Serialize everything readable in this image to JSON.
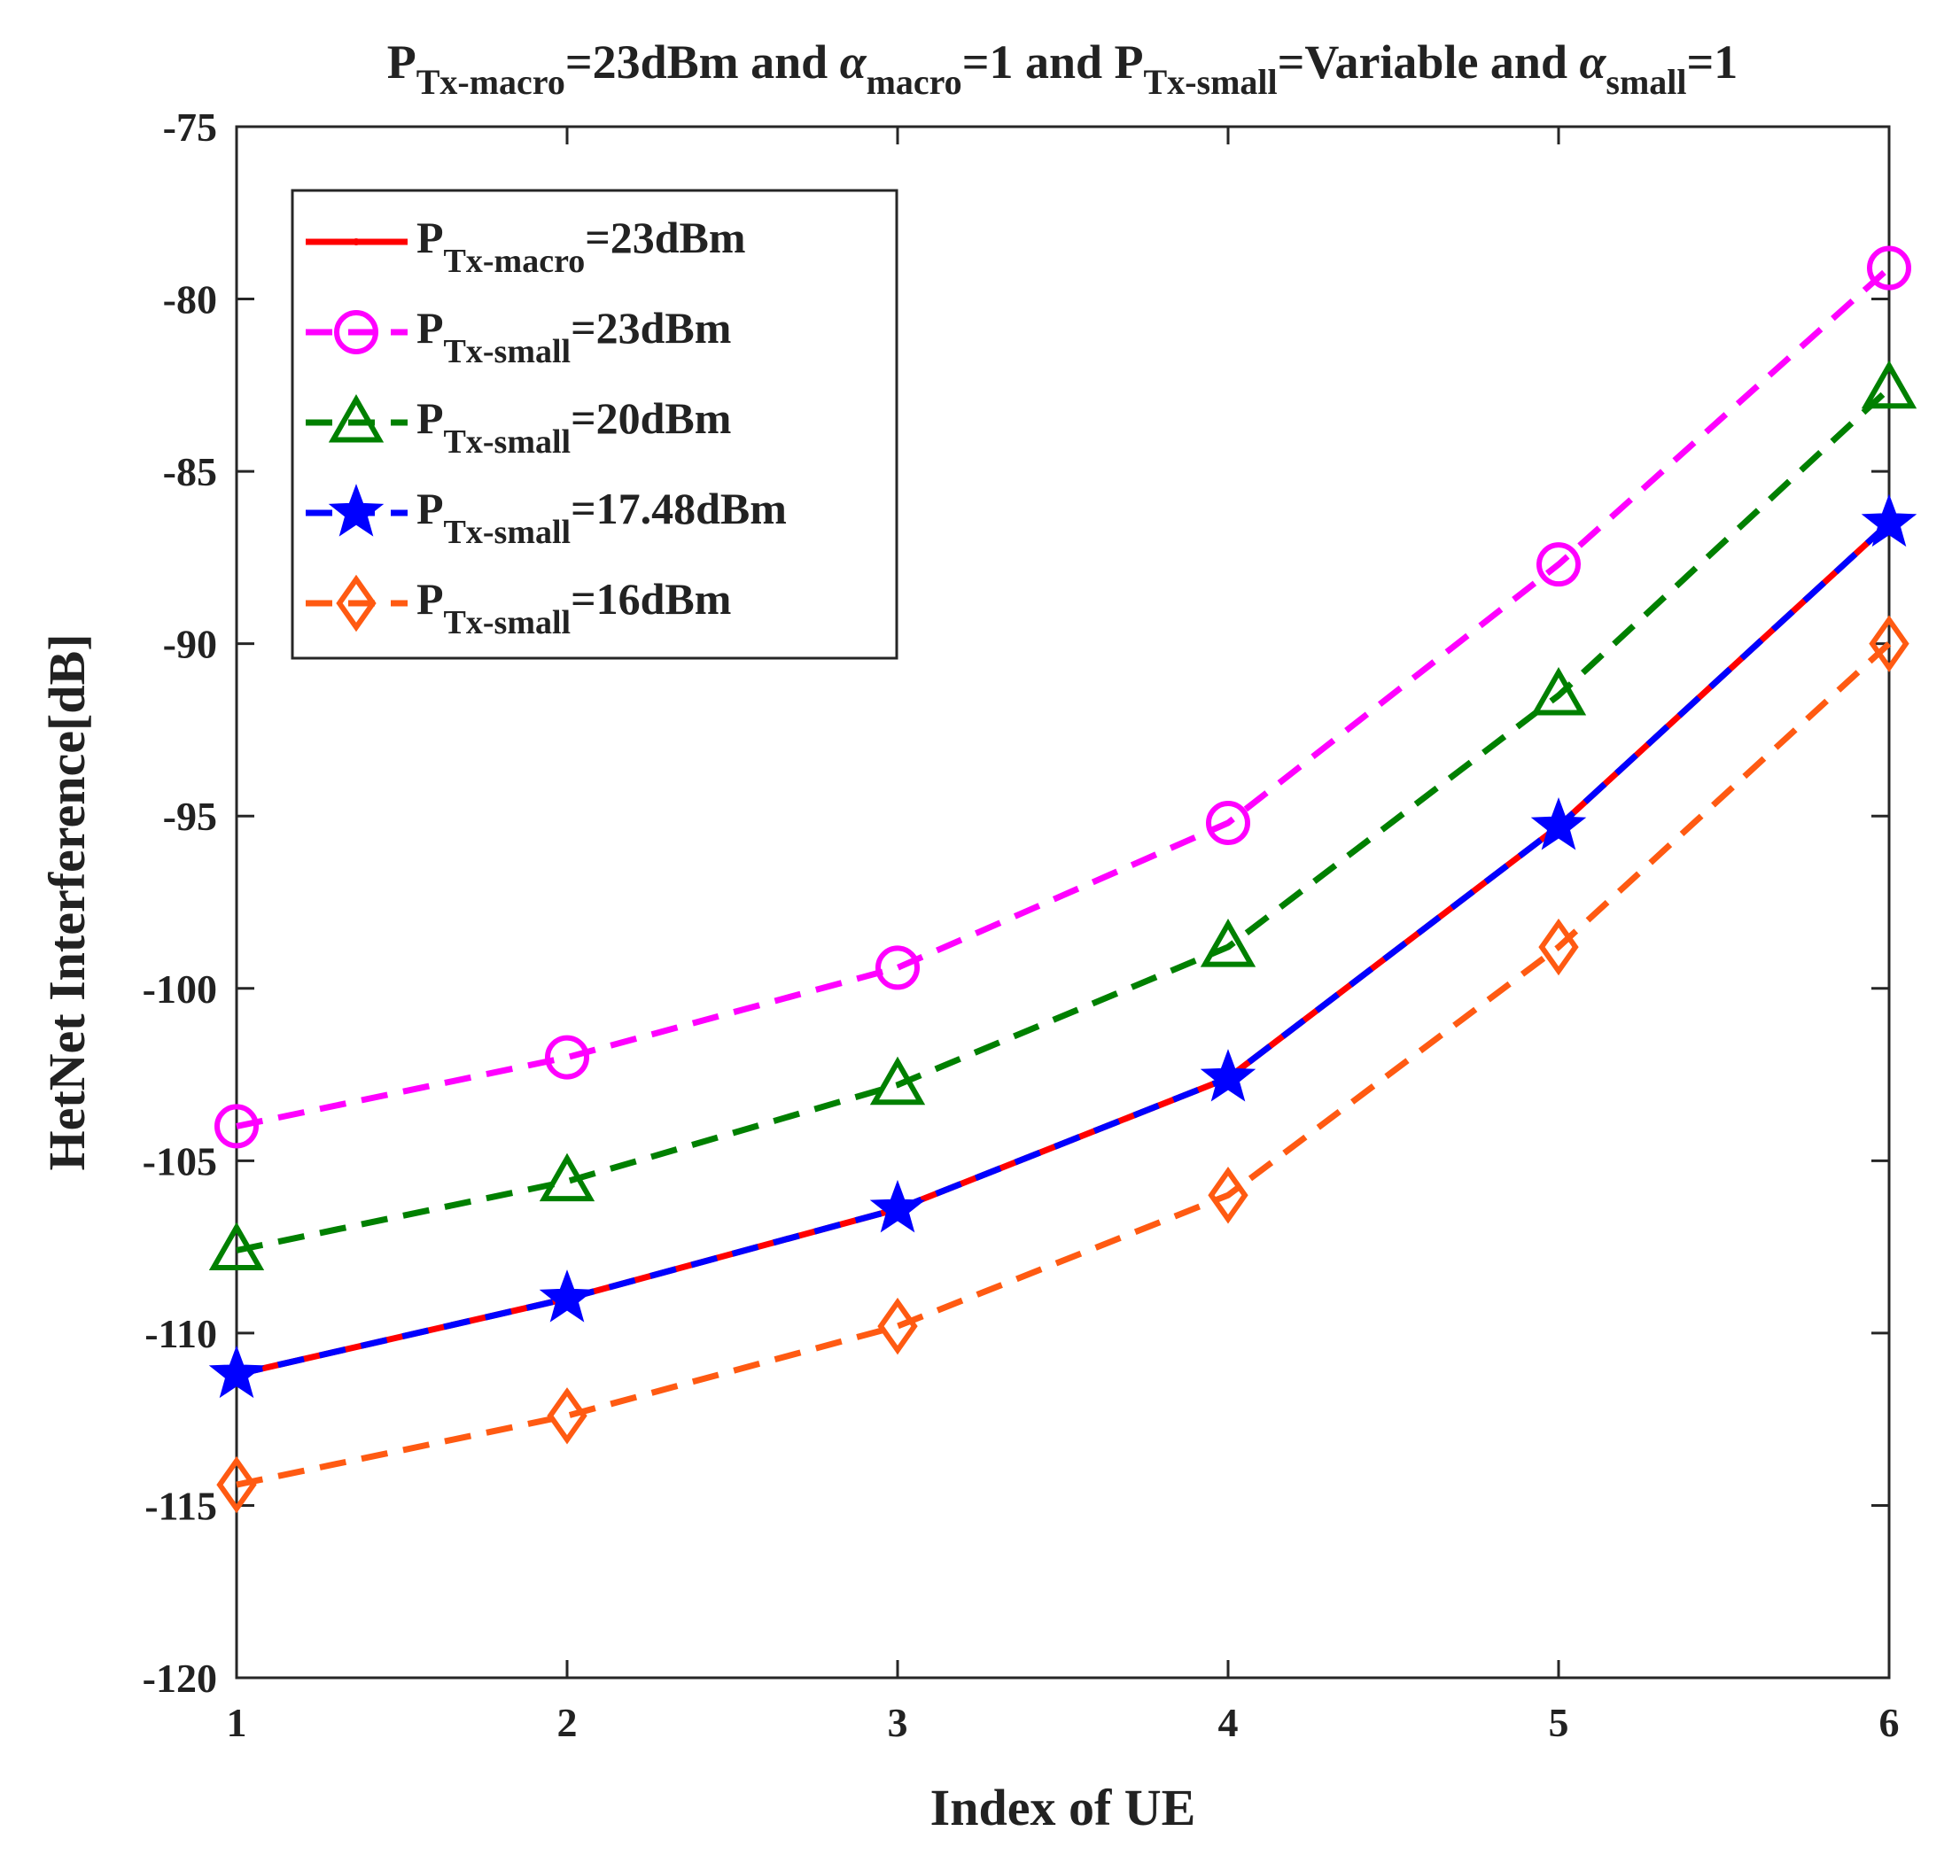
{
  "chart_data": {
    "type": "line",
    "title": {
      "parts": [
        {
          "text": "P",
          "style": "normal"
        },
        {
          "text": "Tx-macro",
          "style": "sub"
        },
        {
          "text": "=23dBm and ",
          "style": "normal"
        },
        {
          "text": "α",
          "style": "greek"
        },
        {
          "text": "macro",
          "style": "sub"
        },
        {
          "text": "=1 and P",
          "style": "normal"
        },
        {
          "text": "Tx-small",
          "style": "sub"
        },
        {
          "text": "=Variable and ",
          "style": "normal"
        },
        {
          "text": "α",
          "style": "greek"
        },
        {
          "text": "small",
          "style": "sub"
        },
        {
          "text": "=1",
          "style": "normal"
        }
      ]
    },
    "xlabel": "Index of UE",
    "ylabel": "HetNet Interference[dB]",
    "x": [
      1,
      2,
      3,
      4,
      5,
      6
    ],
    "xlim": [
      1,
      6
    ],
    "ylim": [
      -120,
      -75
    ],
    "xticks": [
      1,
      2,
      3,
      4,
      5,
      6
    ],
    "yticks": [
      -120,
      -115,
      -110,
      -105,
      -100,
      -95,
      -90,
      -85,
      -80,
      -75
    ],
    "grid": false,
    "legend_location": "top-left",
    "series": [
      {
        "name": "P_Tx-macro=23dBm",
        "label_main": "P",
        "label_sub": "Tx-macro",
        "label_tail": "=23dBm",
        "color": "#ff0000",
        "line_style": "solid",
        "marker": "dot",
        "values": [
          -111.2,
          -109.0,
          -106.4,
          -102.6,
          -95.3,
          -86.5
        ]
      },
      {
        "name": "P_Tx-small=23dBm",
        "label_main": "P",
        "label_sub": "Tx-small",
        "label_tail": "=23dBm",
        "color": "#ff00ff",
        "line_style": "dashed",
        "marker": "circle",
        "values": [
          -104.0,
          -102.0,
          -99.4,
          -95.2,
          -87.7,
          -79.1
        ]
      },
      {
        "name": "P_Tx-small=20dBm",
        "label_main": "P",
        "label_sub": "Tx-small",
        "label_tail": "=20dBm",
        "color": "#008000",
        "line_style": "dashed",
        "marker": "triangle",
        "values": [
          -107.6,
          -105.6,
          -102.8,
          -98.8,
          -91.5,
          -82.6
        ]
      },
      {
        "name": "P_Tx-small=17.48dBm",
        "label_main": "P",
        "label_sub": "Tx-small",
        "label_tail": "=17.48dBm",
        "color": "#0000ff",
        "line_style": "dashed",
        "marker": "star",
        "values": [
          -111.2,
          -109.0,
          -106.4,
          -102.6,
          -95.3,
          -86.5
        ]
      },
      {
        "name": "P_Tx-small=16dBm",
        "label_main": "P",
        "label_sub": "Tx-small",
        "label_tail": "=16dBm",
        "color": "#ff5a12",
        "line_style": "dashed",
        "marker": "diamond",
        "values": [
          -114.4,
          -112.4,
          -109.8,
          -106.0,
          -98.8,
          -90.0
        ]
      }
    ]
  }
}
